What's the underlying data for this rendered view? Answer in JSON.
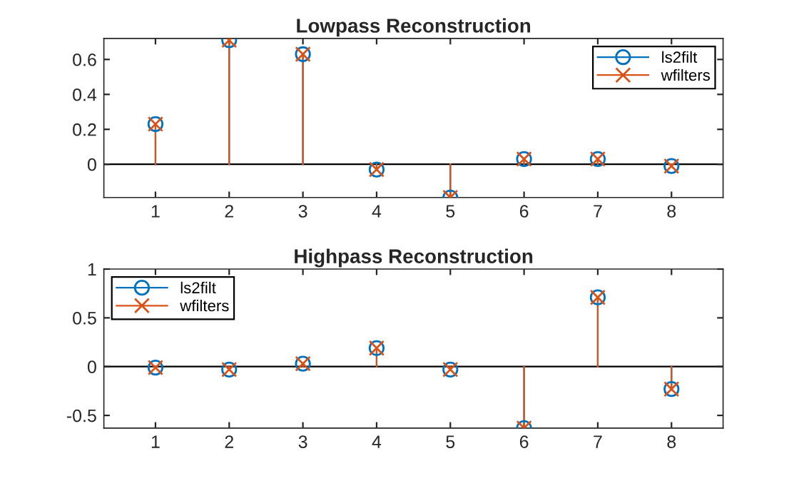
{
  "chart_data": [
    {
      "type": "lollipop",
      "title": "Lowpass Reconstruction",
      "x": [
        1,
        2,
        3,
        4,
        5,
        6,
        7,
        8
      ],
      "xlim": [
        0.3,
        8.7
      ],
      "xticks": [
        1,
        2,
        3,
        4,
        5,
        6,
        7,
        8
      ],
      "ylim": [
        -0.19,
        0.72
      ],
      "yticks": [
        0,
        0.2,
        0.4,
        0.6
      ],
      "grid": false,
      "legend": "top right",
      "ref_lines": [
        {
          "axis": "y",
          "value": 0,
          "color": "#000000"
        }
      ],
      "series": [
        {
          "name": "ls2filt",
          "color": "#0072bd",
          "marker": "circle",
          "values": [
            0.23,
            0.71,
            0.63,
            -0.03,
            -0.19,
            0.03,
            0.03,
            -0.01
          ]
        },
        {
          "name": "wfilters",
          "color": "#d95319",
          "marker": "cross",
          "values": [
            0.23,
            0.71,
            0.63,
            -0.03,
            -0.19,
            0.03,
            0.03,
            -0.01
          ]
        }
      ]
    },
    {
      "type": "lollipop",
      "title": "Highpass Reconstruction",
      "x": [
        1,
        2,
        3,
        4,
        5,
        6,
        7,
        8
      ],
      "xlim": [
        0.3,
        8.7
      ],
      "xticks": [
        1,
        2,
        3,
        4,
        5,
        6,
        7,
        8
      ],
      "ylim": [
        -0.63,
        1
      ],
      "yticks": [
        -0.5,
        0,
        0.5,
        1
      ],
      "grid": false,
      "legend": "top left",
      "ref_lines": [
        {
          "axis": "y",
          "value": 0,
          "color": "#000000"
        }
      ],
      "series": [
        {
          "name": "ls2filt",
          "color": "#0072bd",
          "marker": "circle",
          "values": [
            -0.01,
            -0.03,
            0.03,
            0.19,
            -0.03,
            -0.63,
            0.71,
            -0.23
          ]
        },
        {
          "name": "wfilters",
          "color": "#d95319",
          "marker": "cross",
          "values": [
            -0.01,
            -0.03,
            0.03,
            0.19,
            -0.03,
            -0.63,
            0.71,
            -0.23
          ]
        }
      ]
    }
  ]
}
